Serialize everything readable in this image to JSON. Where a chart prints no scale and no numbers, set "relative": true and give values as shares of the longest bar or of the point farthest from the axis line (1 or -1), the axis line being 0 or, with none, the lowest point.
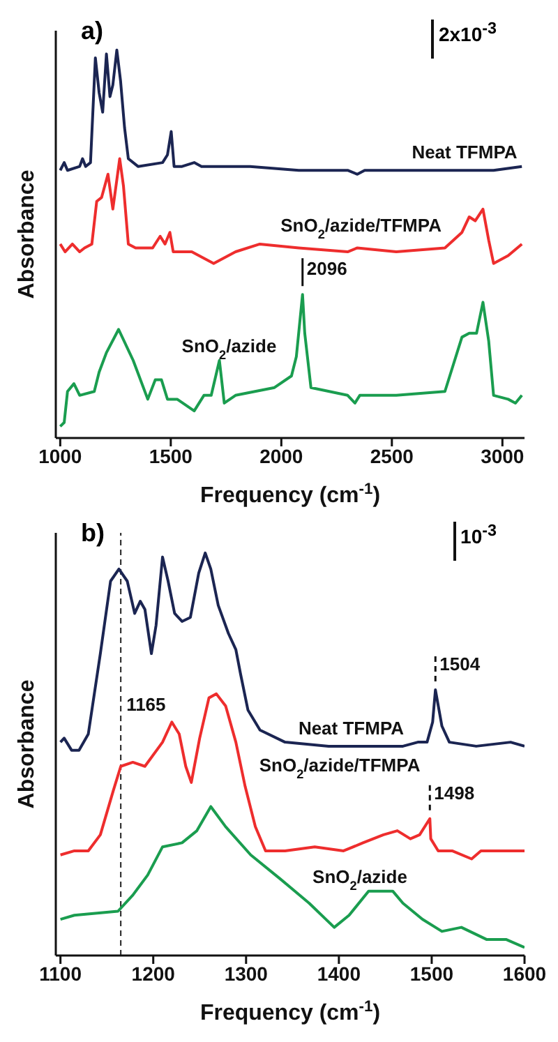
{
  "chart_data": [
    {
      "type": "line",
      "title": "a)",
      "xlabel": "Frequency (cm$^{-1}$)",
      "ylabel": "Absorbance",
      "relative": true,
      "tick_labels": "x",
      "grid": false,
      "legend": false,
      "marker": "none",
      "line_style": "solid",
      "xlim": [
        980,
        3100
      ],
      "xticks": [
        1000,
        1500,
        2000,
        2500,
        3000
      ],
      "annotations": [
        "2x10$^{-3}$",
        {
          "text": "2096",
          "x": 2096,
          "y": 0.37
        }
      ],
      "series": [
        {
          "name": "Neat TFMPA",
          "color": "#1b2552",
          "x": [
            1000,
            1018,
            1033,
            1088,
            1101,
            1115,
            1137,
            1159,
            1176,
            1192,
            1209,
            1225,
            1238,
            1256,
            1273,
            1291,
            1308,
            1352,
            1463,
            1485,
            1502,
            1515,
            1551,
            1606,
            1639,
            1859,
            2079,
            2300,
            2344,
            2377,
            2520,
            2740,
            2960,
            3088
          ],
          "values": [
            0.69,
            0.71,
            0.69,
            0.7,
            0.72,
            0.7,
            0.71,
            0.98,
            0.89,
            0.84,
            0.99,
            0.88,
            0.91,
            1,
            0.92,
            0.8,
            0.72,
            0.7,
            0.71,
            0.73,
            0.79,
            0.7,
            0.7,
            0.71,
            0.7,
            0.7,
            0.69,
            0.69,
            0.68,
            0.69,
            0.69,
            0.69,
            0.69,
            0.7
          ]
        },
        {
          "name": "SnO$_{2}$/azide/TFMPA",
          "color": "#ee2d2d",
          "x": [
            1000,
            1022,
            1055,
            1088,
            1110,
            1143,
            1165,
            1187,
            1216,
            1238,
            1269,
            1286,
            1308,
            1341,
            1418,
            1452,
            1474,
            1496,
            1511,
            1595,
            1694,
            1793,
            1903,
            2079,
            2300,
            2344,
            2520,
            2740,
            2817,
            2850,
            2877,
            2912,
            2938,
            2960,
            3026,
            3088
          ],
          "values": [
            0.5,
            0.48,
            0.5,
            0.48,
            0.49,
            0.5,
            0.61,
            0.62,
            0.68,
            0.59,
            0.72,
            0.65,
            0.5,
            0.49,
            0.49,
            0.52,
            0.5,
            0.53,
            0.48,
            0.48,
            0.45,
            0.48,
            0.5,
            0.49,
            0.48,
            0.49,
            0.48,
            0.49,
            0.53,
            0.57,
            0.56,
            0.59,
            0.51,
            0.45,
            0.47,
            0.5
          ]
        },
        {
          "name": "SnO$_{2}$/azide",
          "color": "#1a9d4f",
          "x": [
            1000,
            1018,
            1033,
            1062,
            1088,
            1154,
            1176,
            1209,
            1264,
            1330,
            1396,
            1430,
            1458,
            1485,
            1529,
            1606,
            1650,
            1683,
            1720,
            1742,
            1793,
            1969,
            2046,
            2068,
            2096,
            2106,
            2134,
            2300,
            2333,
            2355,
            2520,
            2740,
            2817,
            2850,
            2883,
            2912,
            2938,
            2960,
            3026,
            3059,
            3088
          ],
          "values": [
            0.03,
            0.04,
            0.12,
            0.14,
            0.11,
            0.12,
            0.17,
            0.22,
            0.28,
            0.2,
            0.1,
            0.15,
            0.15,
            0.1,
            0.1,
            0.07,
            0.11,
            0.11,
            0.2,
            0.09,
            0.11,
            0.13,
            0.16,
            0.21,
            0.37,
            0.27,
            0.13,
            0.11,
            0.09,
            0.11,
            0.11,
            0.12,
            0.26,
            0.27,
            0.27,
            0.35,
            0.25,
            0.11,
            0.1,
            0.09,
            0.11
          ]
        }
      ]
    },
    {
      "type": "line",
      "title": "b)",
      "xlabel": "Frequency (cm$^{-1}$)",
      "ylabel": "Absorbance",
      "relative": true,
      "tick_labels": "x",
      "grid": false,
      "legend": false,
      "marker": "none",
      "line_style": "solid",
      "xlim": [
        1095,
        1600
      ],
      "xticks": [
        1100,
        1200,
        1300,
        1400,
        1500,
        1600
      ],
      "ref_lines": [
        {
          "axis": "x",
          "value": 1165,
          "label": "1165",
          "line_style": "dashed"
        }
      ],
      "annotations": [
        "10$^{-3}$",
        {
          "text": "1504",
          "x": 1504,
          "y": 0.66
        },
        {
          "text": "1498",
          "x": 1498,
          "y": 0.34
        }
      ],
      "series": [
        {
          "name": "Neat TFMPA",
          "color": "#1b2552",
          "x": [
            1100,
            1104,
            1112,
            1120,
            1130,
            1143,
            1154,
            1163,
            1172,
            1180,
            1186,
            1191,
            1198,
            1203,
            1210,
            1216,
            1223,
            1231,
            1240,
            1249,
            1256,
            1262,
            1270,
            1281,
            1289,
            1294,
            1302,
            1315,
            1342,
            1389,
            1469,
            1485,
            1495,
            1501,
            1504,
            1511,
            1519,
            1548,
            1585,
            1600
          ],
          "values": [
            0.53,
            0.54,
            0.51,
            0.51,
            0.55,
            0.75,
            0.93,
            0.96,
            0.93,
            0.85,
            0.88,
            0.86,
            0.75,
            0.82,
            0.99,
            0.93,
            0.85,
            0.83,
            0.84,
            0.95,
            1,
            0.96,
            0.87,
            0.8,
            0.76,
            0.7,
            0.61,
            0.56,
            0.53,
            0.52,
            0.52,
            0.53,
            0.53,
            0.58,
            0.66,
            0.57,
            0.53,
            0.52,
            0.53,
            0.52
          ]
        },
        {
          "name": "SnO$_{2}$/azide/TFMPA",
          "color": "#ee2d2d",
          "x": [
            1100,
            1115,
            1130,
            1143,
            1157,
            1165,
            1178,
            1191,
            1210,
            1220,
            1228,
            1235,
            1241,
            1250,
            1260,
            1268,
            1278,
            1289,
            1299,
            1310,
            1321,
            1342,
            1374,
            1405,
            1426,
            1448,
            1463,
            1477,
            1487,
            1498,
            1499,
            1507,
            1522,
            1543,
            1553,
            1575,
            1600
          ],
          "values": [
            0.25,
            0.26,
            0.26,
            0.3,
            0.41,
            0.47,
            0.48,
            0.47,
            0.53,
            0.58,
            0.55,
            0.47,
            0.43,
            0.54,
            0.64,
            0.65,
            0.62,
            0.53,
            0.42,
            0.32,
            0.26,
            0.26,
            0.27,
            0.26,
            0.28,
            0.3,
            0.31,
            0.29,
            0.3,
            0.34,
            0.29,
            0.26,
            0.26,
            0.24,
            0.26,
            0.26,
            0.26
          ]
        },
        {
          "name": "SnO$_{2}$/azide",
          "color": "#1a9d4f",
          "x": [
            1100,
            1115,
            1162,
            1178,
            1194,
            1210,
            1231,
            1247,
            1262,
            1278,
            1305,
            1337,
            1368,
            1395,
            1411,
            1432,
            1458,
            1469,
            1490,
            1511,
            1532,
            1559,
            1580,
            1600
          ],
          "values": [
            0.09,
            0.1,
            0.11,
            0.15,
            0.2,
            0.27,
            0.28,
            0.31,
            0.37,
            0.32,
            0.25,
            0.19,
            0.13,
            0.07,
            0.1,
            0.16,
            0.16,
            0.13,
            0.09,
            0.06,
            0.07,
            0.04,
            0.04,
            0.02
          ]
        }
      ]
    }
  ]
}
